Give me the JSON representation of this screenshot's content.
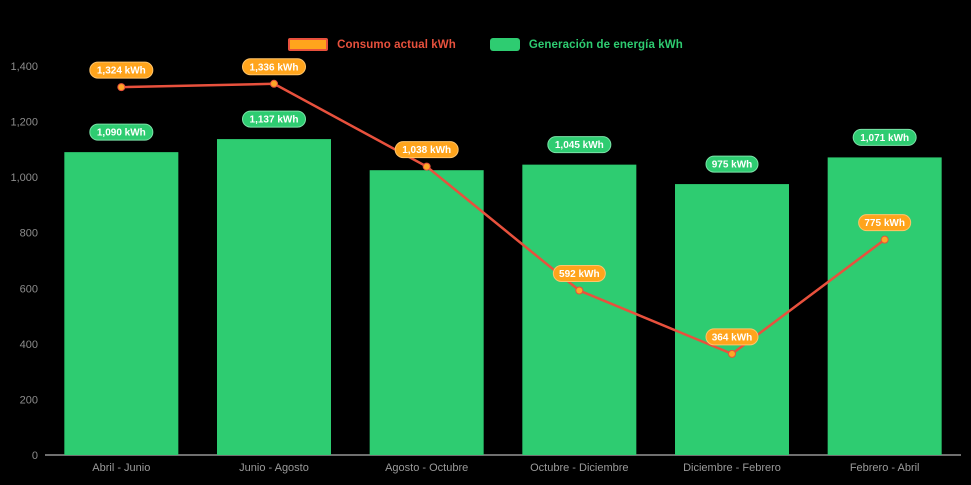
{
  "chart_data": {
    "type": "combo",
    "categories": [
      "Abril - Junio",
      "Junio - Agosto",
      "Agosto - Octubre",
      "Octubre - Diciembre",
      "Diciembre - Febrero",
      "Febrero - Abril"
    ],
    "series": [
      {
        "name": "Consumo actual kWh",
        "type": "line",
        "color": "#e8513d",
        "marker_color": "#ffa726",
        "label_bg": "#ffa41c",
        "label_border": "#ffc46b",
        "values": [
          1324,
          1336,
          1038,
          592,
          364,
          775
        ],
        "labels": [
          "1,324 kWh",
          "1,336 kWh",
          "1,038 kWh",
          "592 kWh",
          "364 kWh",
          "775 kWh"
        ]
      },
      {
        "name": "Generación de energía kWh",
        "type": "bar",
        "color": "#2ecc71",
        "label_bg": "#2ecc71",
        "label_border": "#7be3a8",
        "values": [
          1090,
          1137,
          1025,
          1045,
          975,
          1071
        ],
        "labels": [
          "1,090 kWh",
          "1,137 kWh",
          null,
          "1,045 kWh",
          "975 kWh",
          "1,071 kWh"
        ]
      }
    ],
    "y_ticks": [
      "0",
      "200",
      "400",
      "600",
      "800",
      "1,000",
      "1,200",
      "1,400"
    ],
    "y_tick_values": [
      0,
      200,
      400,
      600,
      800,
      1000,
      1200,
      1400
    ],
    "ylim": [
      0,
      1400
    ],
    "grid": false,
    "legend_position": "top",
    "colors": {
      "background": "#000000",
      "axis_text": "#8c8c8c",
      "category_text": "#9a9a9a",
      "axis_line": "#dedede",
      "label_text": "#ffffff"
    }
  }
}
